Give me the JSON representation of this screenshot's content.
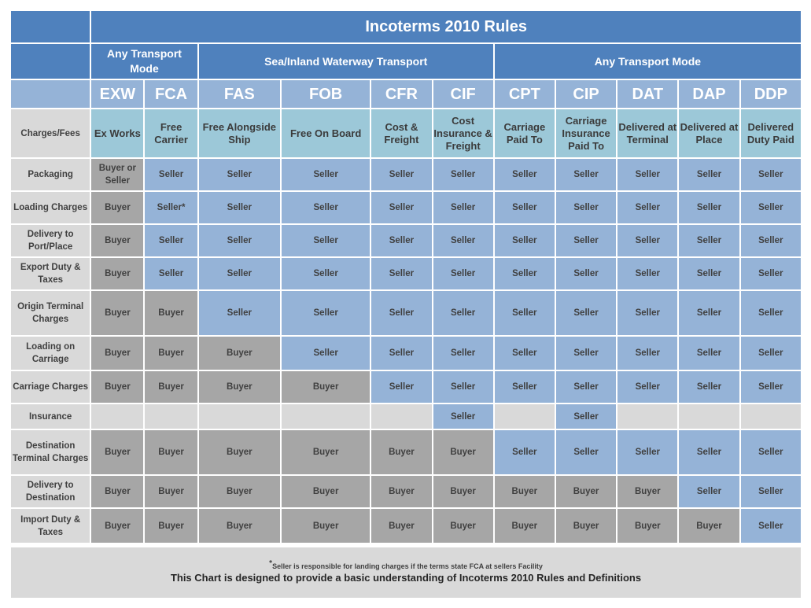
{
  "title": "Incoterms 2010 Rules",
  "groups": {
    "any_transport_1": "Any Transport Mode",
    "sea": "Sea/Inland Waterway Transport",
    "any_transport_2": "Any Transport Mode"
  },
  "terms": [
    {
      "code": "EXW",
      "name": "Ex Works"
    },
    {
      "code": "FCA",
      "name": "Free Carrier"
    },
    {
      "code": "FAS",
      "name": "Free Alongside Ship"
    },
    {
      "code": "FOB",
      "name": "Free On Board"
    },
    {
      "code": "CFR",
      "name": "Cost & Freight"
    },
    {
      "code": "CIF",
      "name": "Cost Insurance & Freight"
    },
    {
      "code": "CPT",
      "name": "Carriage Paid To"
    },
    {
      "code": "CIP",
      "name": "Carriage Insurance Paid To"
    },
    {
      "code": "DAT",
      "name": "Delivered at Terminal"
    },
    {
      "code": "DAP",
      "name": "Delivered at Place"
    },
    {
      "code": "DDP",
      "name": "Delivered Duty Paid"
    }
  ],
  "charges_header": "Charges/Fees",
  "rows": [
    {
      "label": "Packaging",
      "cells": [
        "Buyer or Seller",
        "Seller",
        "Seller",
        "Seller",
        "Seller",
        "Seller",
        "Seller",
        "Seller",
        "Seller",
        "Seller",
        "Seller"
      ]
    },
    {
      "label": "Loading Charges",
      "cells": [
        "Buyer",
        "Seller*",
        "Seller",
        "Seller",
        "Seller",
        "Seller",
        "Seller",
        "Seller",
        "Seller",
        "Seller",
        "Seller"
      ]
    },
    {
      "label": "Delivery to Port/Place",
      "cells": [
        "Buyer",
        "Seller",
        "Seller",
        "Seller",
        "Seller",
        "Seller",
        "Seller",
        "Seller",
        "Seller",
        "Seller",
        "Seller"
      ]
    },
    {
      "label": "Export Duty & Taxes",
      "cells": [
        "Buyer",
        "Seller",
        "Seller",
        "Seller",
        "Seller",
        "Seller",
        "Seller",
        "Seller",
        "Seller",
        "Seller",
        "Seller"
      ]
    },
    {
      "label": "Origin Terminal Charges",
      "cells": [
        "Buyer",
        "Buyer",
        "Seller",
        "Seller",
        "Seller",
        "Seller",
        "Seller",
        "Seller",
        "Seller",
        "Seller",
        "Seller"
      ]
    },
    {
      "label": "Loading on Carriage",
      "cells": [
        "Buyer",
        "Buyer",
        "Buyer",
        "Seller",
        "Seller",
        "Seller",
        "Seller",
        "Seller",
        "Seller",
        "Seller",
        "Seller"
      ]
    },
    {
      "label": "Carriage Charges",
      "cells": [
        "Buyer",
        "Buyer",
        "Buyer",
        "Buyer",
        "Seller",
        "Seller",
        "Seller",
        "Seller",
        "Seller",
        "Seller",
        "Seller"
      ]
    },
    {
      "label": "Insurance",
      "cells": [
        "",
        "",
        "",
        "",
        "",
        "Seller",
        "",
        "Seller",
        "",
        "",
        ""
      ]
    },
    {
      "label": "Destination Terminal Charges",
      "cells": [
        "Buyer",
        "Buyer",
        "Buyer",
        "Buyer",
        "Buyer",
        "Buyer",
        "Seller",
        "Seller",
        "Seller",
        "Seller",
        "Seller"
      ]
    },
    {
      "label": "Delivery to Destination",
      "cells": [
        "Buyer",
        "Buyer",
        "Buyer",
        "Buyer",
        "Buyer",
        "Buyer",
        "Buyer",
        "Buyer",
        "Buyer",
        "Seller",
        "Seller"
      ]
    },
    {
      "label": "Import Duty & Taxes",
      "cells": [
        "Buyer",
        "Buyer",
        "Buyer",
        "Buyer",
        "Buyer",
        "Buyer",
        "Buyer",
        "Buyer",
        "Buyer",
        "Buyer",
        "Seller"
      ]
    }
  ],
  "footer": {
    "asterisk": "*",
    "note": "Seller is responsible for landing charges if the terms state FCA at sellers Facility",
    "summary": "This Chart is designed to provide a basic understanding of Incoterms 2010 Rules and Definitions"
  },
  "colors": {
    "header_blue": "#4f81bd",
    "code_blue": "#95b3d7",
    "desc_teal": "#9cc8d8",
    "seller_blue": "#95b3d7",
    "buyer_gray": "#a6a6a6",
    "label_gray": "#d9d9d9"
  }
}
